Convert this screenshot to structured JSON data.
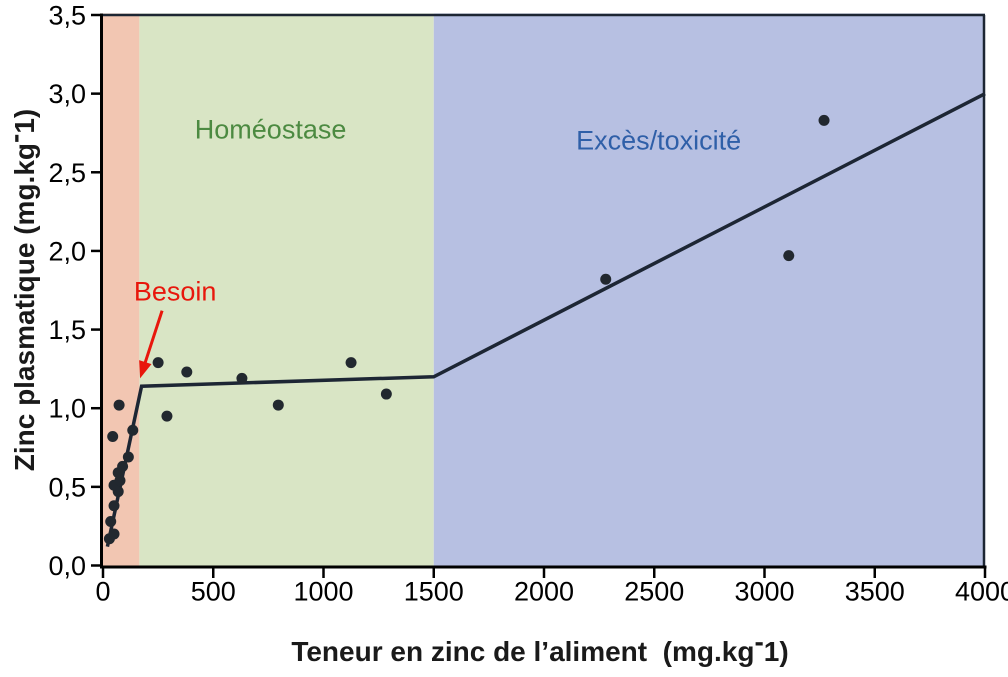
{
  "chart_data": {
    "type": "scatter",
    "title": "",
    "xlabel": "Teneur en zinc de l’aliment (mg.kg-1)",
    "xlabel_prefix": "Teneur en zinc de l’aliment  (mg.kg",
    "xlabel_sup": "-",
    "xlabel_suffix": "1)",
    "ylabel": "Zinc plasmatique (mg.kg-1)",
    "ylabel_prefix": "Zinc plasmatique (mg.kg",
    "ylabel_sup": "-",
    "ylabel_suffix": "1)",
    "xlim": [
      0,
      4000
    ],
    "ylim": [
      0,
      3.5
    ],
    "x_tick_values": [
      0,
      500,
      1000,
      1500,
      2000,
      2500,
      3000,
      3500,
      4000
    ],
    "x_tick_labels": [
      "0",
      "500",
      "1000",
      "1500",
      "2000",
      "2500",
      "3000",
      "3500",
      "4000"
    ],
    "y_tick_values": [
      0,
      0.5,
      1,
      1.5,
      2,
      2.5,
      3,
      3.5
    ],
    "y_tick_labels": [
      "0,0",
      "0,5",
      "1,0",
      "1,5",
      "2,0",
      "2,5",
      "3,0",
      "3,5"
    ],
    "grid": false,
    "axis_color": "#000000",
    "frame_color": "#1d2633",
    "point_color": "#22282f",
    "zones": [
      {
        "name": "carence",
        "label": "",
        "x_start": 0,
        "x_end": 165,
        "fill": "#f2c6b2"
      },
      {
        "name": "homeostase",
        "label": "Homéostase",
        "x_start": 165,
        "x_end": 1500,
        "fill": "#d9e5c5",
        "label_color": "#4c8a41",
        "label_x": 760,
        "label_y": 2.77
      },
      {
        "name": "exces-toxicite",
        "label": "Excès/toxicité",
        "x_start": 1500,
        "x_end": 4000,
        "fill": "#b7c0e2",
        "label_color": "#2f5fa8",
        "label_x": 2520,
        "label_y": 2.7
      }
    ],
    "points": [
      [
        29,
        0.17
      ],
      [
        35,
        0.28
      ],
      [
        50,
        0.2
      ],
      [
        50,
        0.38
      ],
      [
        44,
        0.82
      ],
      [
        69,
        0.47
      ],
      [
        50,
        0.51
      ],
      [
        77,
        0.54
      ],
      [
        69,
        0.59
      ],
      [
        89,
        0.63
      ],
      [
        115,
        0.69
      ],
      [
        135,
        0.86
      ],
      [
        73,
        1.02
      ],
      [
        250,
        1.29
      ],
      [
        290,
        0.95
      ],
      [
        380,
        1.23
      ],
      [
        630,
        1.19
      ],
      [
        795,
        1.02
      ],
      [
        1125,
        1.29
      ],
      [
        1285,
        1.09
      ],
      [
        2280,
        1.82
      ],
      [
        3110,
        1.97
      ],
      [
        3270,
        2.83
      ]
    ],
    "trend_line": {
      "color": "#1d2634",
      "width": 3.5,
      "points": [
        [
          20,
          0.12
        ],
        [
          175,
          1.14
        ],
        [
          1500,
          1.2
        ],
        [
          4000,
          3.0
        ]
      ]
    },
    "annotation": {
      "text": "Besoin",
      "color": "#e8170c",
      "text_x": 327,
      "text_y": 1.74,
      "arrow_start": [
        268,
        1.62
      ],
      "arrow_end": [
        168,
        1.19
      ]
    }
  }
}
